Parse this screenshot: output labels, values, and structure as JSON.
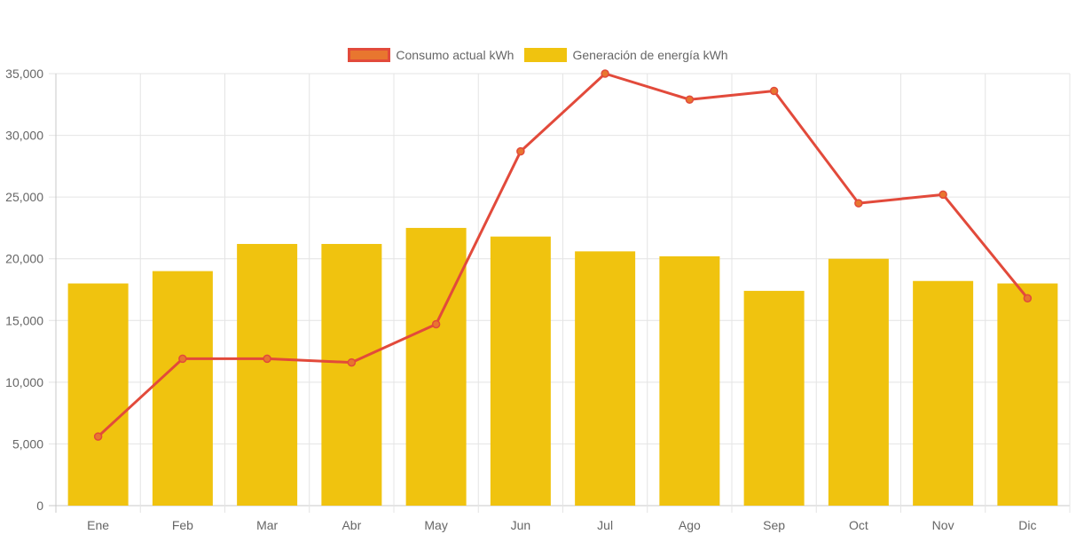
{
  "chart_data": {
    "type": "bar",
    "categories": [
      "Ene",
      "Feb",
      "Mar",
      "Abr",
      "May",
      "Jun",
      "Jul",
      "Ago",
      "Sep",
      "Oct",
      "Nov",
      "Dic"
    ],
    "series": [
      {
        "name": "Consumo actual kWh",
        "type": "line",
        "values": [
          5600,
          11900,
          11900,
          11600,
          14700,
          28700,
          35000,
          32900,
          33600,
          24500,
          25200,
          16800
        ],
        "color": "#e24a3b",
        "point_color": "#e8762f"
      },
      {
        "name": "Generación de energía kWh",
        "type": "bar",
        "values": [
          18000,
          19000,
          21200,
          21200,
          22500,
          21800,
          20600,
          20200,
          17400,
          20000,
          18200,
          18000
        ],
        "color": "#f0c30f"
      }
    ],
    "ylim": [
      0,
      35000
    ],
    "yticks": [
      "0",
      "5,000",
      "10,000",
      "15,000",
      "20,000",
      "25,000",
      "30,000",
      "35,000"
    ],
    "grid": true,
    "legend_position": "top-center",
    "title": "",
    "xlabel": "",
    "ylabel": ""
  }
}
